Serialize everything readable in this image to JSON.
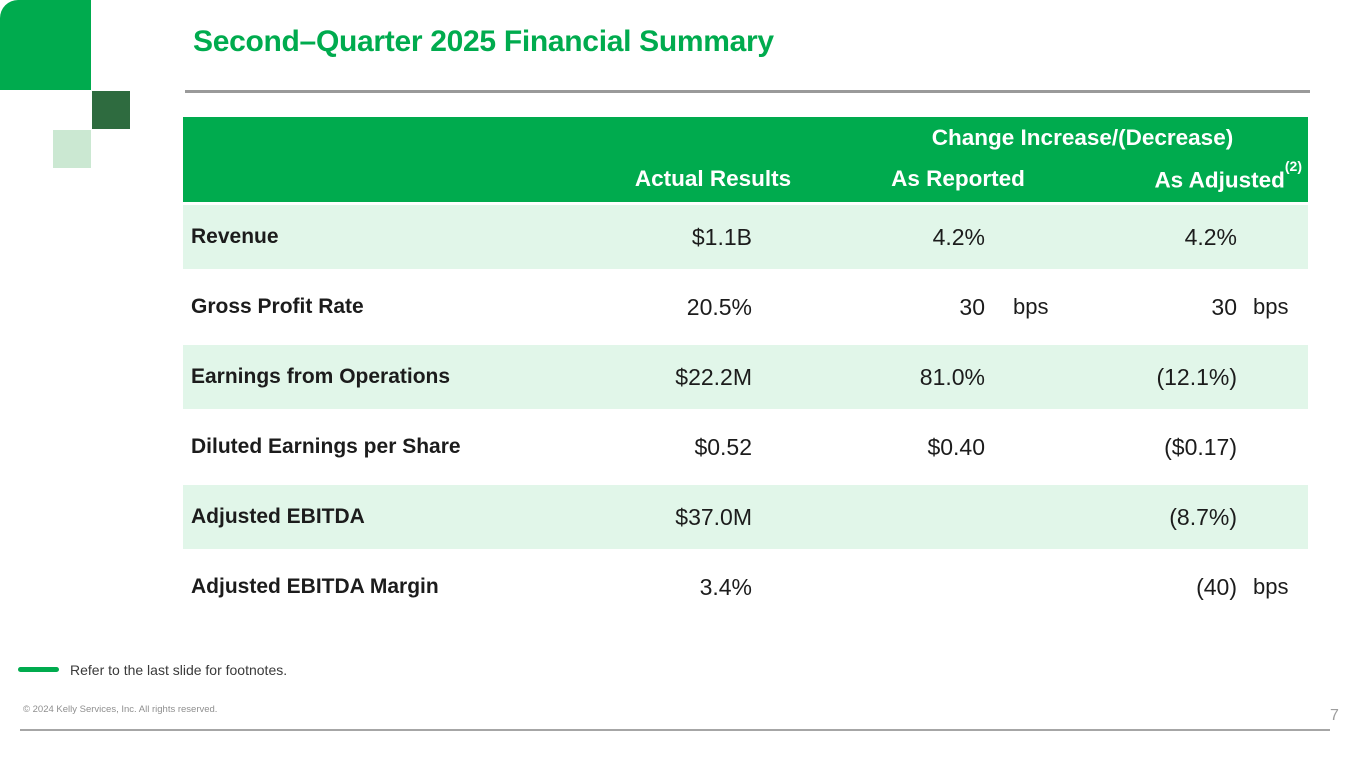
{
  "slide": {
    "title": "Second–Quarter 2025 Financial Summary",
    "footnote_note": "Refer to the last slide for footnotes.",
    "copyright": "© 2024 Kelly Services, Inc. All rights reserved.",
    "page_number": "7"
  },
  "table": {
    "change_group_header": "Change Increase/(Decrease)",
    "columns": [
      "",
      "Actual Results",
      "As Reported",
      "As Adjusted"
    ],
    "adjusted_footnote_ref": "(2)",
    "rows": [
      {
        "label": "Revenue",
        "actual": "$1.1B",
        "actual_unit": "",
        "reported": "4.2%",
        "reported_unit": "",
        "adjusted": "4.2%",
        "adjusted_unit": ""
      },
      {
        "label": "Gross Profit Rate",
        "actual": "20.5%",
        "actual_unit": "",
        "reported": "30",
        "reported_unit": "bps",
        "adjusted": "30",
        "adjusted_unit": "bps"
      },
      {
        "label": "Earnings from Operations",
        "actual": "$22.2M",
        "actual_unit": "",
        "reported": "81.0%",
        "reported_unit": "",
        "adjusted": "(12.1%)",
        "adjusted_unit": ""
      },
      {
        "label": "Diluted Earnings per Share",
        "actual": "$0.52",
        "actual_unit": "",
        "reported": "$0.40",
        "reported_unit": "",
        "adjusted": "($0.17)",
        "adjusted_unit": ""
      },
      {
        "label": "Adjusted EBITDA",
        "actual": "$37.0M",
        "actual_unit": "",
        "reported": "",
        "reported_unit": "",
        "adjusted": "(8.7%)",
        "adjusted_unit": ""
      },
      {
        "label": "Adjusted EBITDA Margin",
        "actual": "3.4%",
        "actual_unit": "",
        "reported": "",
        "reported_unit": "",
        "adjusted": "(40)",
        "adjusted_unit": "bps"
      }
    ]
  },
  "colors": {
    "brand_green": "#00AB4E",
    "dark_green": "#2E6B3F",
    "pale_green": "#CBE8D2",
    "row_band_green": "#E1F6E9",
    "rule_gray": "#9a9a9a"
  }
}
